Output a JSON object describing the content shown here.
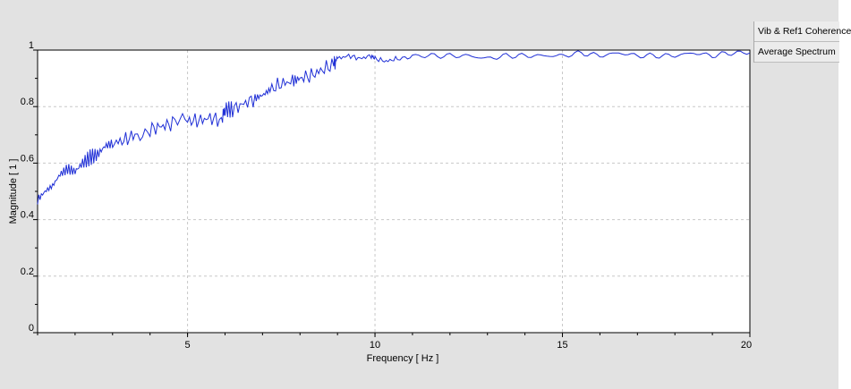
{
  "legend": {
    "items": [
      {
        "label": "Vib & Ref1 Coherence"
      },
      {
        "label": "Average Spectrum"
      }
    ]
  },
  "colors": {
    "series": "#1f2fd6",
    "grid": "#c8c8c8",
    "panel_bg": "#e2e2e2",
    "plot_bg": "#ffffff"
  },
  "chart_data": {
    "type": "line",
    "title": "",
    "xlabel": "Frequency [ Hz ]",
    "ylabel": "Magnitude [ 1 ]",
    "xlim": [
      1,
      20
    ],
    "ylim": [
      0,
      1
    ],
    "xticks": [
      5,
      10,
      15,
      20
    ],
    "xtick_labels": [
      "5",
      "10",
      "15",
      "20"
    ],
    "yticks": [
      0,
      0.2,
      0.4,
      0.6,
      0.8,
      1
    ],
    "ytick_labels": [
      "0",
      "0.2",
      "0.4",
      "0.6",
      "0.8",
      "1"
    ],
    "grid": true,
    "series": [
      {
        "name": "Vib & Ref1 Coherence",
        "x": [
          1.0,
          1.2,
          1.4,
          1.6,
          1.8,
          2.0,
          2.2,
          2.4,
          2.6,
          2.8,
          3.0,
          3.3,
          3.6,
          4.0,
          4.3,
          4.6,
          5.0,
          5.3,
          5.6,
          5.9,
          6.0,
          6.2,
          6.5,
          6.8,
          7.0,
          7.2,
          7.5,
          7.8,
          8.0,
          8.3,
          8.6,
          8.9,
          9.0,
          9.3,
          9.6,
          9.9,
          10.0,
          10.3,
          10.6,
          11.0,
          11.5,
          12.0,
          12.5,
          13.0,
          13.5,
          14.0,
          14.5,
          15.0,
          15.5,
          16.0,
          16.5,
          17.0,
          17.5,
          18.0,
          18.5,
          19.0,
          19.5,
          20.0
        ],
        "y": [
          0.47,
          0.5,
          0.52,
          0.56,
          0.58,
          0.57,
          0.6,
          0.62,
          0.63,
          0.66,
          0.67,
          0.68,
          0.7,
          0.72,
          0.73,
          0.74,
          0.75,
          0.75,
          0.76,
          0.75,
          0.79,
          0.79,
          0.81,
          0.83,
          0.84,
          0.86,
          0.88,
          0.89,
          0.9,
          0.91,
          0.93,
          0.95,
          0.97,
          0.98,
          0.97,
          0.98,
          0.97,
          0.96,
          0.97,
          0.98,
          0.98,
          0.98,
          0.98,
          0.97,
          0.98,
          0.98,
          0.98,
          0.98,
          0.99,
          0.98,
          0.99,
          0.98,
          0.98,
          0.98,
          0.99,
          0.98,
          0.99,
          0.99
        ]
      }
    ]
  }
}
